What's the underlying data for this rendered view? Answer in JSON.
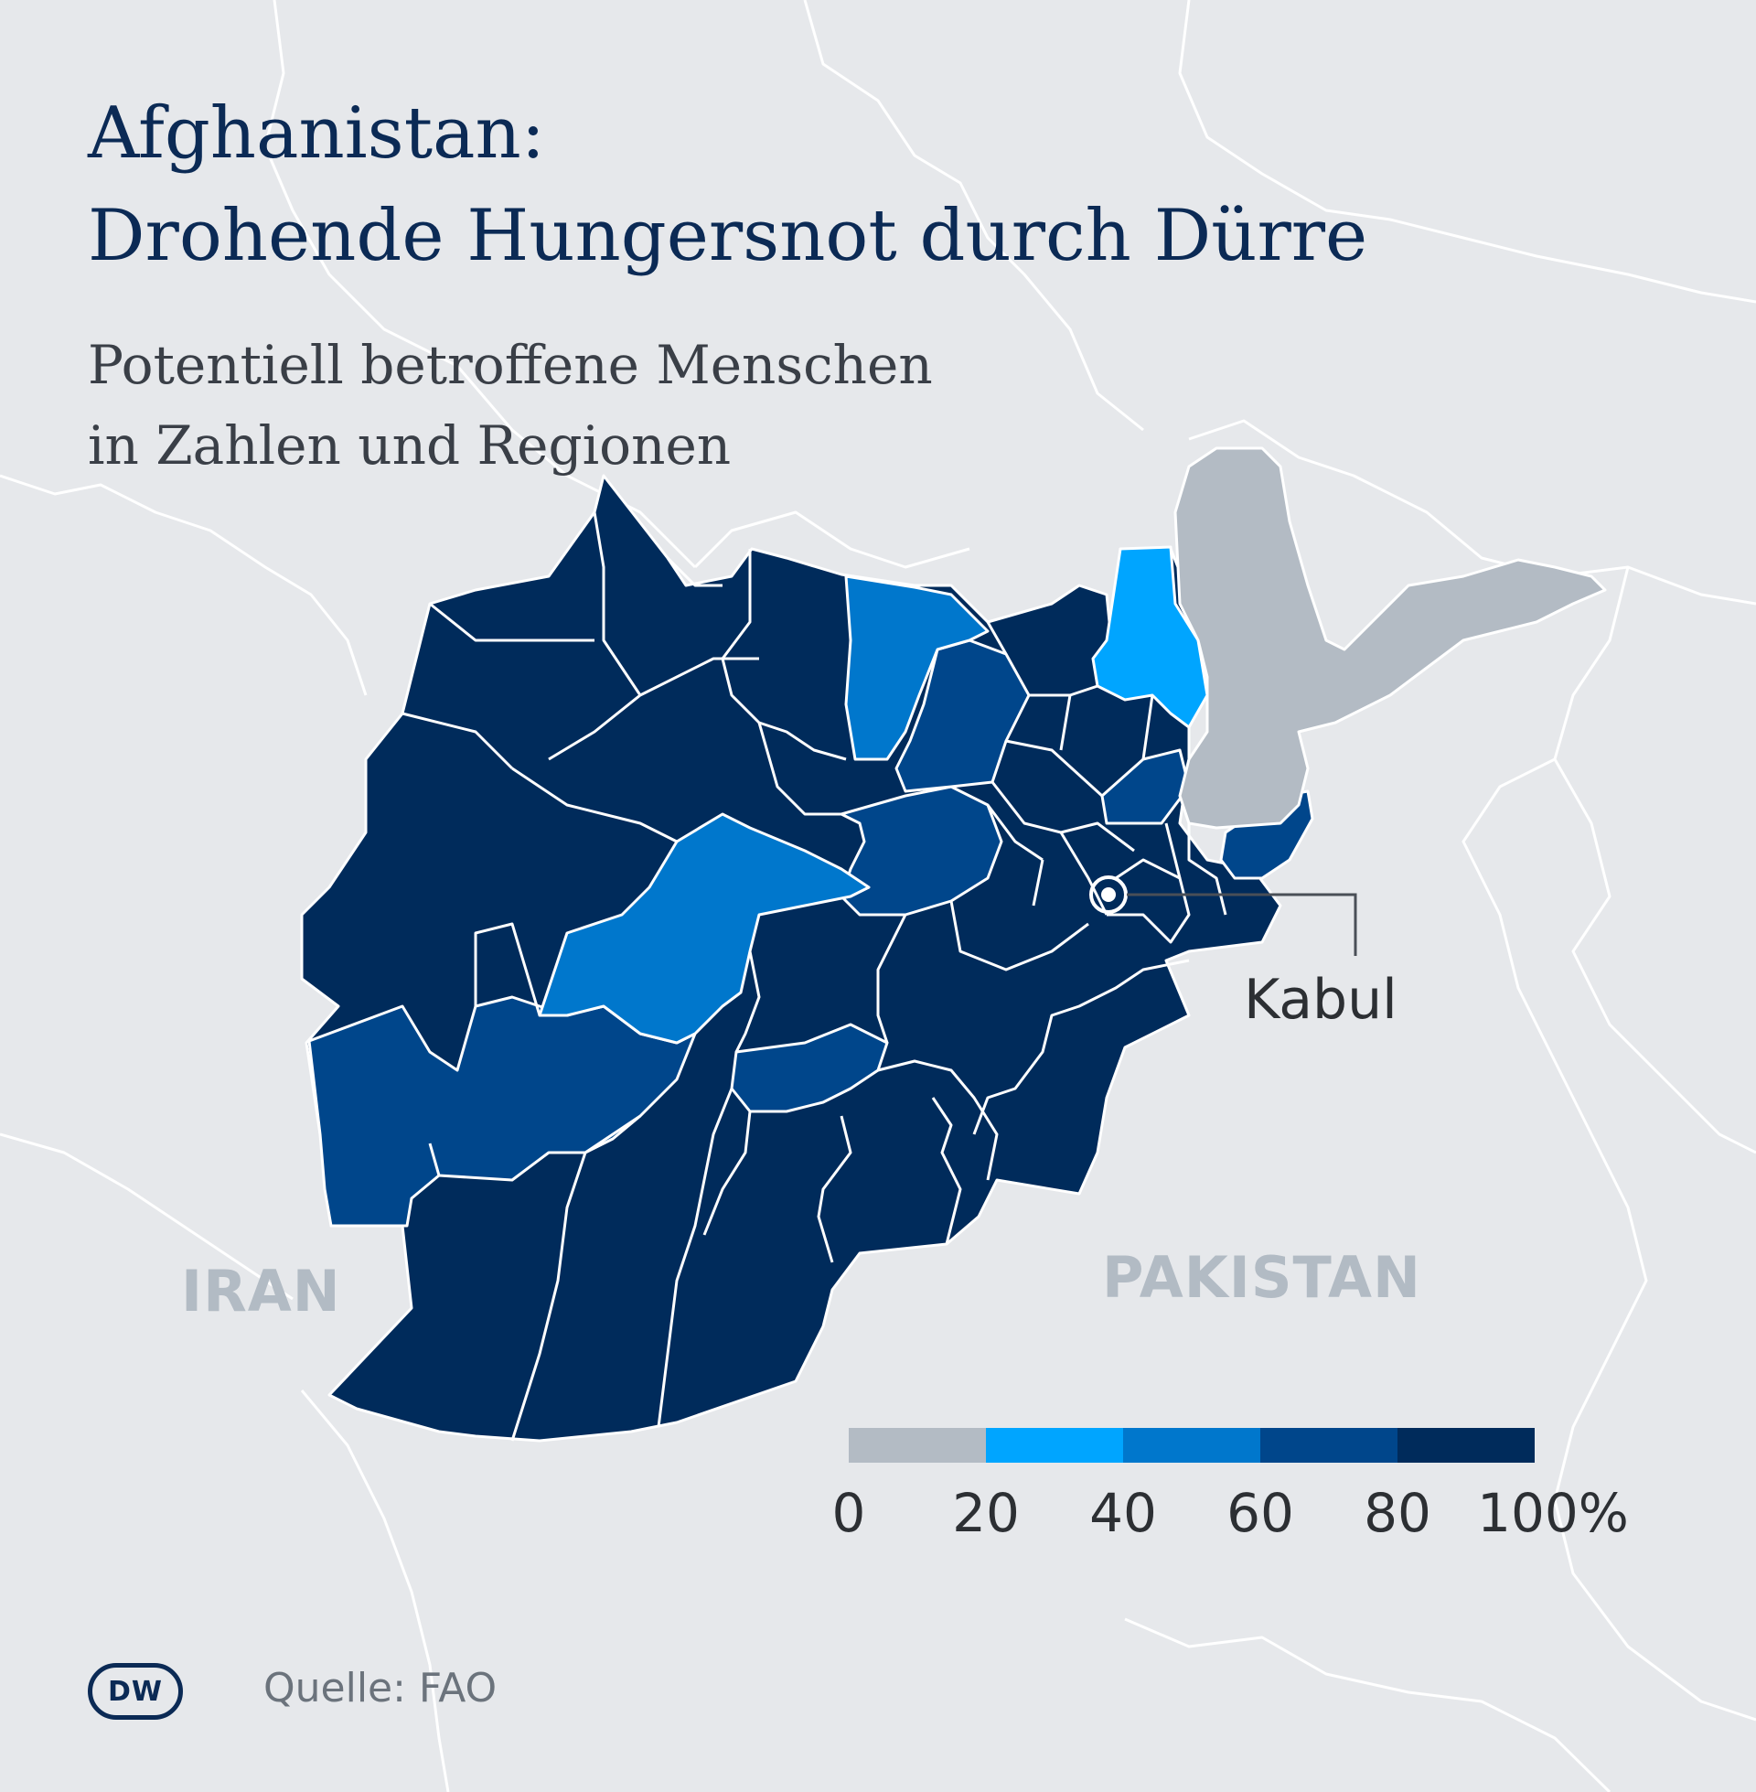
{
  "title": [
    "Afghanistan:",
    "Drohende Hungersnot durch Dürre"
  ],
  "subtitle": [
    "Potentiell betroffene Menschen",
    "in Zahlen und Regionen"
  ],
  "countries": {
    "iran": "IRAN",
    "pakistan": "PAKISTAN"
  },
  "city": "Kabul",
  "source": "Quelle: FAO",
  "logo": "DW",
  "legend": {
    "unit": "%",
    "ticks": [
      "0",
      "20",
      "40",
      "60",
      "80",
      "100%"
    ],
    "bins": [
      {
        "range": [
          0,
          20
        ],
        "color": "#b3bbc4"
      },
      {
        "range": [
          20,
          40
        ],
        "color": "#00a5ff"
      },
      {
        "range": [
          40,
          60
        ],
        "color": "#0077cc"
      },
      {
        "range": [
          60,
          80
        ],
        "color": "#00468b"
      },
      {
        "range": [
          80,
          100
        ],
        "color": "#002b5b"
      }
    ]
  },
  "colors": {
    "background": "#e6e8eb",
    "neighbor_border": "#ffffff",
    "title": "#0b2a55",
    "label_gray": "#b2bbc4"
  },
  "icons": {
    "capital": "capital-marker-icon",
    "logo": "dw-logo-icon"
  }
}
